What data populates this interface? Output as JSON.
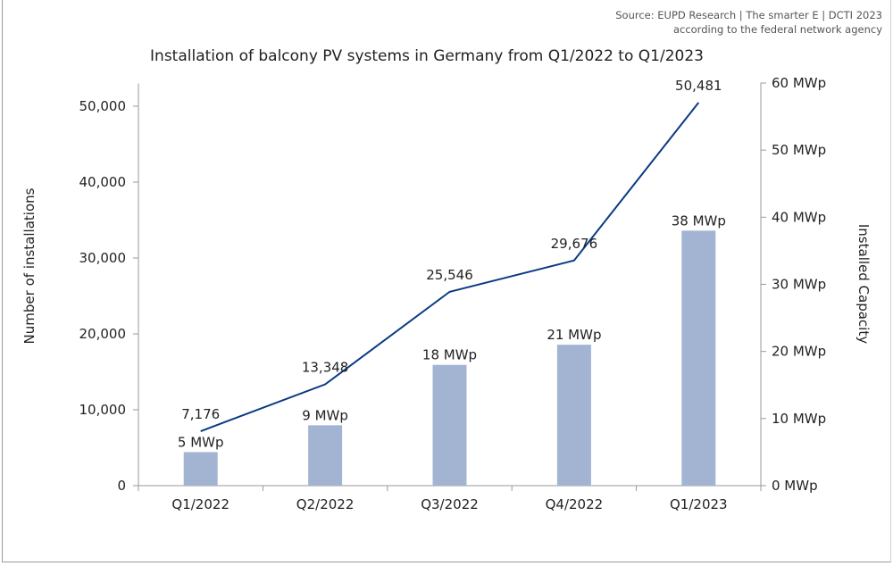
{
  "source": {
    "line1": "Source: EUPD Research | The smarter E | DCTI 2023",
    "line2": "according to the federal network agency"
  },
  "chart_data": {
    "type": "bar+line",
    "title": "Installation of balcony PV systems in Germany from Q1/2022 to Q1/2023",
    "categories": [
      "Q1/2022",
      "Q2/2022",
      "Q3/2022",
      "Q4/2022",
      "Q1/2023"
    ],
    "series": [
      {
        "name": "Number of installations",
        "type": "line",
        "axis": "left",
        "values": [
          7176,
          13348,
          25546,
          29676,
          50481
        ],
        "labels": [
          "7,176",
          "13,348",
          "25,546",
          "29,676",
          "50,481"
        ],
        "color": "#0a3a82"
      },
      {
        "name": "Installed Capacity",
        "type": "bar",
        "axis": "right",
        "values": [
          5,
          9,
          18,
          21,
          38
        ],
        "labels": [
          "5 MWp",
          "9 MWp",
          "18 MWp",
          "21 MWp",
          "38 MWp"
        ],
        "color": "#a3b4d3"
      }
    ],
    "ylabel": "Number of installations",
    "y2label": "Installed Capacity",
    "ylim": [
      0,
      53000
    ],
    "yticks": [
      0,
      10000,
      20000,
      30000,
      40000,
      50000
    ],
    "ytick_labels": [
      "0",
      "10,000",
      "20,000",
      "30,000",
      "40,000",
      "50,000"
    ],
    "y2lim": [
      0,
      60
    ],
    "y2ticks": [
      0,
      10,
      20,
      30,
      40,
      50,
      60
    ],
    "y2tick_labels": [
      "0 MWp",
      "10 MWp",
      "20 MWp",
      "30 MWp",
      "40 MWp",
      "50 MWp",
      "60 MWp"
    ],
    "grid": false,
    "legend": "none"
  }
}
